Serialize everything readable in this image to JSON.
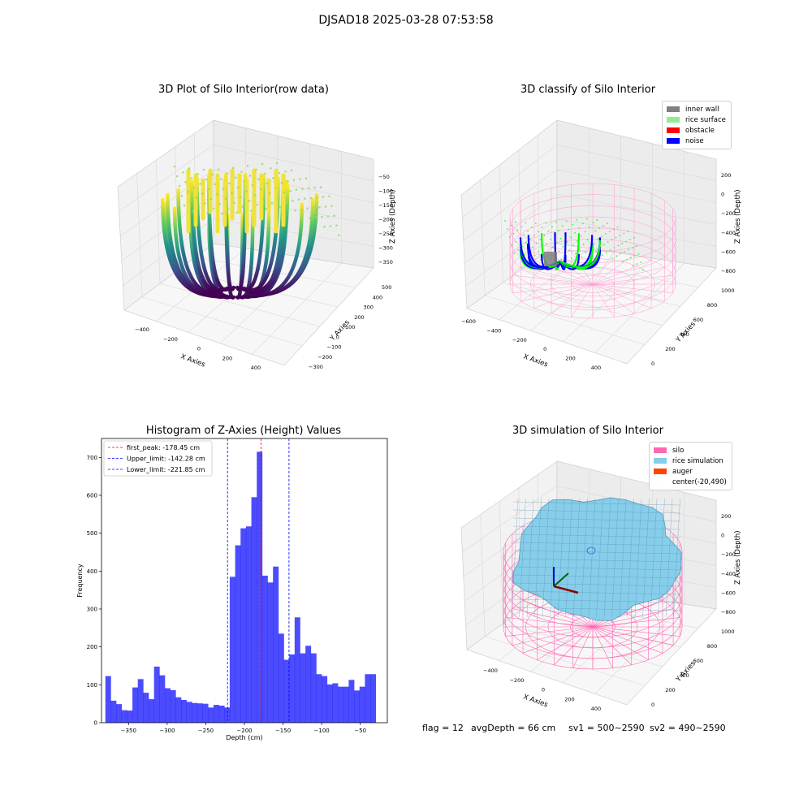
{
  "suptitle": "DJSAD18 2025-03-28 07:53:58",
  "panels": {
    "raw": {
      "title": "3D Plot of Silo Interior(row data)",
      "xlabel": "X Axies",
      "ylabel": "Y Axies",
      "zlabel": "Z Axies (Depth)",
      "xticks": [
        "−400",
        "−200",
        "0",
        "200",
        "400"
      ],
      "yticks": [
        "−300",
        "−200",
        "−100",
        "0",
        "100",
        "200",
        "300",
        "400",
        "500"
      ],
      "zticks": [
        "−50",
        "−100",
        "−150",
        "−200",
        "−250",
        "−300",
        "−350"
      ]
    },
    "classify": {
      "title": "3D classify of Silo Interior",
      "xlabel": "X Axies",
      "ylabel": "Y Axies",
      "zlabel": "Z Axies (Depth)",
      "xticks": [
        "−600",
        "−400",
        "−200",
        "0",
        "200",
        "400"
      ],
      "yticks": [
        "0",
        "200",
        "400",
        "600",
        "800",
        "1000"
      ],
      "zticks": [
        "200",
        "0",
        "−200",
        "−400",
        "−600",
        "−800"
      ],
      "legend": [
        {
          "label": "inner wall",
          "color": "#808080"
        },
        {
          "label": "rice surface",
          "color": "#90ee90"
        },
        {
          "label": "obstacle",
          "color": "#ff0000"
        },
        {
          "label": "noise",
          "color": "#0000ff"
        }
      ]
    },
    "simulation": {
      "title": "3D simulation of Silo Interior",
      "xlabel": "X Axies",
      "ylabel": "Y Axies",
      "zlabel": "Z Axies (Depth)",
      "xticks": [
        "−400",
        "−200",
        "0",
        "200",
        "400"
      ],
      "yticks": [
        "0",
        "200",
        "400",
        "600",
        "800",
        "1000"
      ],
      "zticks": [
        "200",
        "0",
        "−200",
        "−400",
        "−600",
        "−800"
      ],
      "legend": [
        {
          "label": "silo",
          "color": "#ff69b4"
        },
        {
          "label": "rice simulation",
          "color": "#87ceeb"
        },
        {
          "label": "auger",
          "color": "#ff4500"
        },
        {
          "label": "center(-20,490)",
          "color": ""
        }
      ]
    }
  },
  "chart_data": {
    "type": "bar",
    "title": "Histogram of Z-Axies (Height) Values",
    "xlabel": "Depth (cm)",
    "ylabel": "Frequency",
    "xlim": [
      -385,
      -15
    ],
    "ylim": [
      0,
      750
    ],
    "xticks": [
      -350,
      -300,
      -250,
      -200,
      -150,
      -100,
      -50
    ],
    "yticks": [
      0,
      100,
      200,
      300,
      400,
      500,
      600,
      700
    ],
    "bar_color": "#0000ff",
    "bin_start": -380,
    "bin_width": 7.0,
    "values": [
      123,
      58,
      49,
      33,
      32,
      93,
      115,
      79,
      62,
      148,
      125,
      91,
      86,
      67,
      60,
      55,
      52,
      51,
      50,
      40,
      47,
      45,
      40,
      385,
      468,
      513,
      518,
      595,
      715,
      388,
      370,
      412,
      235,
      166,
      180,
      278,
      183,
      203,
      183,
      128,
      123,
      101,
      104,
      95,
      95,
      113,
      85,
      95,
      128,
      128
    ],
    "lines": [
      {
        "label": "first_peak: -178.45 cm",
        "x": -178.45,
        "color": "#ff0000"
      },
      {
        "label": "Upper_limit: -142.28 cm",
        "x": -142.28,
        "color": "#0000ff"
      },
      {
        "label": "Lower_limit: -221.85 cm",
        "x": -221.85,
        "color": "#0000ff"
      }
    ],
    "legend_position": "upper-left"
  },
  "footer": {
    "flag": "flag = 12",
    "avg": "avgDepth = 66 cm",
    "sv1": "sv1 = 500~2590",
    "sv2": "sv2 = 490~2590"
  }
}
